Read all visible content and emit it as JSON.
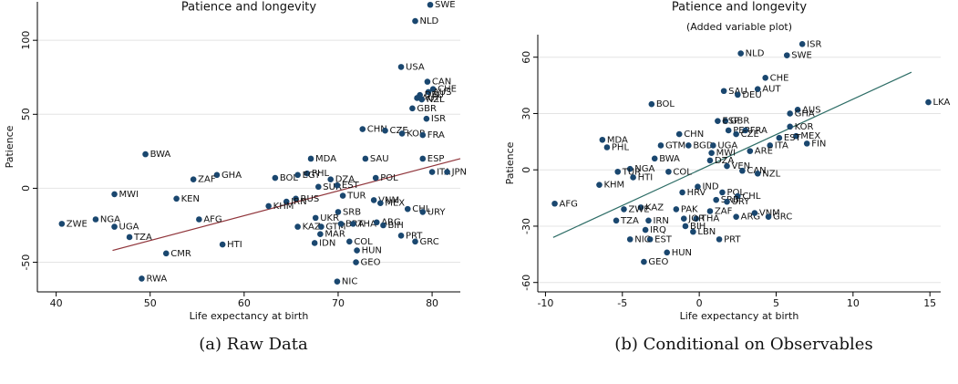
{
  "chart_data": [
    {
      "type": "scatter",
      "title": "Patience and longevity",
      "x_label": "Life expectancy at birth",
      "y_label": "Patience",
      "caption": "(a) Raw Data",
      "color": "#1a476f",
      "grid": true,
      "xlim": [
        38,
        83
      ],
      "ylim": [
        -70,
        126
      ],
      "xticks": [
        40,
        50,
        60,
        70,
        80
      ],
      "yticks": [
        -50,
        0,
        50,
        100
      ],
      "labels": [
        "SWE",
        "NLD",
        "USA",
        "CAN",
        "CHE",
        "AUS",
        "DEU",
        "AUT",
        "NZL",
        "GBR",
        "ISR",
        "CHN",
        "CZE",
        "KOR",
        "FRA",
        "BWA",
        "MDA",
        "SAU",
        "ESP",
        "PHL",
        "POL",
        "ITA",
        "JPN",
        "GHA",
        "ZAF",
        "BOL",
        "EGY",
        "DZA",
        "SUR",
        "EST",
        "MWI",
        "KEN",
        "RUS",
        "TUR",
        "IRN",
        "KHM",
        "SRB",
        "VNM",
        "MEX",
        "CHL",
        "URY",
        "NGA",
        "ZWE",
        "UGA",
        "AFG",
        "UKR",
        "KAZ",
        "GTM",
        "BRA",
        "THA",
        "ARG",
        "BIH",
        "TZA",
        "MAR",
        "COL",
        "HTI",
        "IDN",
        "PRT",
        "GRC",
        "HUN",
        "GEO",
        "CMR",
        "RWA",
        "NIC"
      ],
      "x": [
        79.8,
        78.2,
        76.7,
        79.5,
        80.1,
        79.6,
        78.7,
        78.4,
        78.9,
        77.9,
        79.4,
        72.6,
        75,
        76.8,
        79,
        49.5,
        67.1,
        72.9,
        79,
        66.7,
        74,
        80,
        81.6,
        57.1,
        54.6,
        63.3,
        65.7,
        69.2,
        67.9,
        69.9,
        46.2,
        52.8,
        65.5,
        70.5,
        64.5,
        62.6,
        70,
        73.8,
        74.5,
        77.4,
        79,
        44.2,
        40.6,
        46.2,
        55.2,
        67.6,
        65.7,
        68.2,
        70.3,
        71.6,
        74.1,
        74.8,
        47.8,
        68.1,
        71.2,
        57.7,
        67.5,
        76.7,
        78.2,
        72,
        71.9,
        51.7,
        49.1,
        69.9
      ],
      "y": [
        124,
        113,
        82,
        72,
        67,
        65,
        63,
        61,
        60,
        54,
        47,
        40,
        39,
        37,
        36,
        23,
        20,
        20,
        20,
        10,
        7,
        11,
        11,
        9,
        6,
        7,
        9,
        6,
        1,
        2,
        -4,
        -7,
        -7,
        -5,
        -9,
        -12,
        -16,
        -8,
        -10,
        -14,
        -16,
        -21,
        -24,
        -26,
        -21,
        -20,
        -26,
        -26,
        -24,
        -24,
        -23,
        -25,
        -33,
        -31,
        -36,
        -38,
        -37,
        -32,
        -36,
        -42,
        -50,
        -44,
        -61,
        -63
      ],
      "fit_line": {
        "color": "#90353b",
        "x": [
          46,
          83
        ],
        "y": [
          -42,
          20
        ]
      }
    },
    {
      "type": "scatter",
      "title": "Patience and longevity",
      "subtitle": "(Added variable plot)",
      "x_label": "Life expectancy at birth",
      "y_label": "Patience",
      "caption": "(b) Conditional on Observables",
      "color": "#1a476f",
      "grid": true,
      "xlim": [
        -10.5,
        15.7
      ],
      "ylim": [
        -65,
        72
      ],
      "xticks": [
        -10,
        -5,
        0,
        5,
        10,
        15
      ],
      "yticks": [
        -60,
        -30,
        0,
        30,
        60
      ],
      "labels": [
        "ISR",
        "NLD",
        "SWE",
        "CHE",
        "AUT",
        "SAU",
        "DEU",
        "BOL",
        "LKA",
        "AUS",
        "GHA",
        "GBR",
        "ESP",
        "PER",
        "FRA",
        "CZE",
        "CHN",
        "KOR",
        "MEX",
        "EST",
        "FIN",
        "MDA",
        "PHL",
        "GTM",
        "BGD",
        "UGA",
        "ITA",
        "MWI",
        "ARE",
        "BWA",
        "DZA",
        "VEN",
        "NGA",
        "TUR",
        "HTI",
        "COL",
        "CAN",
        "NZL",
        "KHM",
        "IND",
        "POL",
        "HRV",
        "CHL",
        "SRB",
        "URY",
        "AFG",
        "KAZ",
        "ZWE",
        "PAK",
        "ZAF",
        "ARG",
        "VNM",
        "GRC",
        "THA",
        "JOR",
        "TZA",
        "IRN",
        "IRQ",
        "BIH",
        "LBN",
        "EST",
        "NIC",
        "PRT",
        "HUN",
        "GEO"
      ],
      "x": [
        6.7,
        2.7,
        5.7,
        4.3,
        3.8,
        1.6,
        2.5,
        -3.1,
        14.9,
        6.4,
        5.9,
        1.7,
        1.2,
        1.9,
        3,
        2.4,
        -1.3,
        5.9,
        6.3,
        5.2,
        7,
        -6.3,
        -6,
        -2.5,
        -0.7,
        0.9,
        4.6,
        0.8,
        3.3,
        -2.9,
        0.7,
        1.8,
        -4.5,
        -5.3,
        -4.3,
        -2,
        2.8,
        3.8,
        -6.5,
        -0.1,
        1.5,
        -1.1,
        2.5,
        1.1,
        1.8,
        -9.4,
        -3.8,
        -4.9,
        -1.5,
        0.7,
        2.4,
        3.6,
        4.5,
        -0.2,
        -1,
        -5.4,
        -3.3,
        -3.5,
        -0.9,
        -0.4,
        -3.2,
        -4.5,
        1.3,
        -2.1,
        -3.6
      ],
      "y": [
        67,
        62,
        61,
        49,
        43,
        42,
        40,
        35,
        36,
        32,
        30,
        26,
        26,
        21,
        21,
        19,
        19,
        23,
        18,
        17,
        14,
        16,
        12,
        13,
        13,
        13,
        13,
        9,
        10,
        6,
        5,
        2,
        0.5,
        -1,
        -4,
        -1,
        -0.5,
        -2,
        -8,
        -9,
        -12,
        -12,
        -14,
        -16,
        -17,
        -18,
        -20,
        -21,
        -21,
        -22,
        -25,
        -23,
        -25,
        -26,
        -26,
        -27,
        -27,
        -32,
        -30,
        -33,
        -37,
        -37,
        -37,
        -44,
        -49
      ],
      "fit_line": {
        "color": "#2d6d66",
        "x": [
          -9.5,
          13.8
        ],
        "y": [
          -36,
          52
        ]
      }
    }
  ]
}
